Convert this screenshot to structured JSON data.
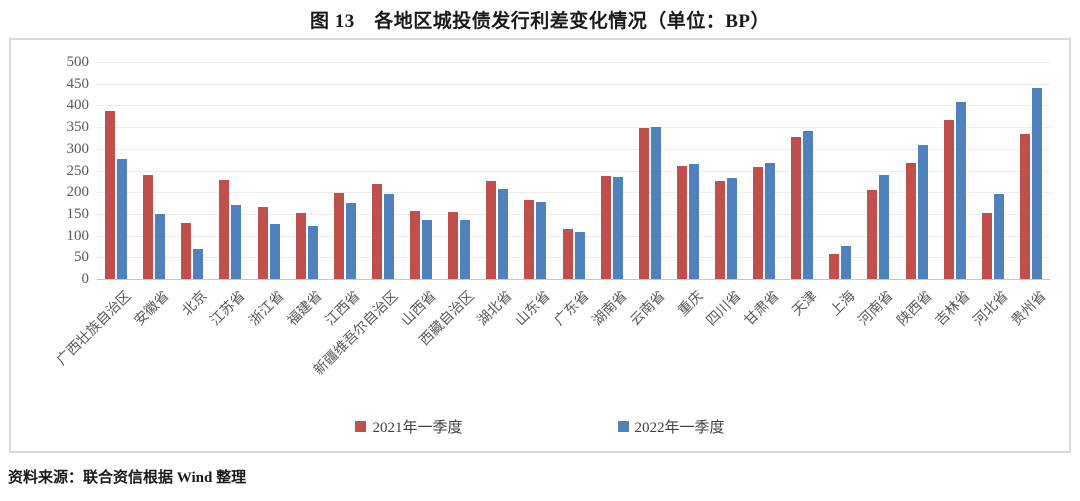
{
  "title": "图 13　各地区城投债发行利差变化情况（单位：BP）",
  "source_note": "资料来源：联合资信根据 Wind 整理",
  "colors": {
    "series_2021": "#C0504D",
    "series_2022": "#4F81BD",
    "gridline": "#ECECEC",
    "axis_line": "#C6C6C6",
    "axis_text": "#5A5A5A",
    "chart_border": "#D8D8D8"
  },
  "chart_data": {
    "type": "bar",
    "title": "图 13　各地区城投债发行利差变化情况（单位：BP）",
    "xlabel": "",
    "ylabel": "",
    "ylim": [
      0,
      500
    ],
    "ytick_step": 50,
    "grid": true,
    "legend_position": "bottom",
    "categories": [
      "广西壮族自治区",
      "安徽省",
      "北京",
      "江苏省",
      "浙江省",
      "福建省",
      "江西省",
      "新疆维吾尔自治区",
      "山西省",
      "西藏自治区",
      "湖北省",
      "山东省",
      "广东省",
      "湖南省",
      "云南省",
      "重庆",
      "四川省",
      "甘肃省",
      "天津",
      "上海",
      "河南省",
      "陕西省",
      "吉林省",
      "河北省",
      "贵州省"
    ],
    "series": [
      {
        "name": "2021年一季度",
        "color": "#C0504D",
        "values": [
          388,
          239,
          128,
          227,
          166,
          152,
          199,
          219,
          157,
          155,
          226,
          182,
          115,
          237,
          348,
          261,
          226,
          258,
          328,
          57,
          204,
          268,
          367,
          151,
          334
        ]
      },
      {
        "name": "2022年一季度",
        "color": "#4F81BD",
        "values": [
          276,
          150,
          70,
          171,
          127,
          121,
          174,
          196,
          137,
          137,
          207,
          177,
          108,
          235,
          350,
          264,
          233,
          268,
          342,
          77,
          240,
          308,
          408,
          196,
          440
        ]
      }
    ]
  }
}
